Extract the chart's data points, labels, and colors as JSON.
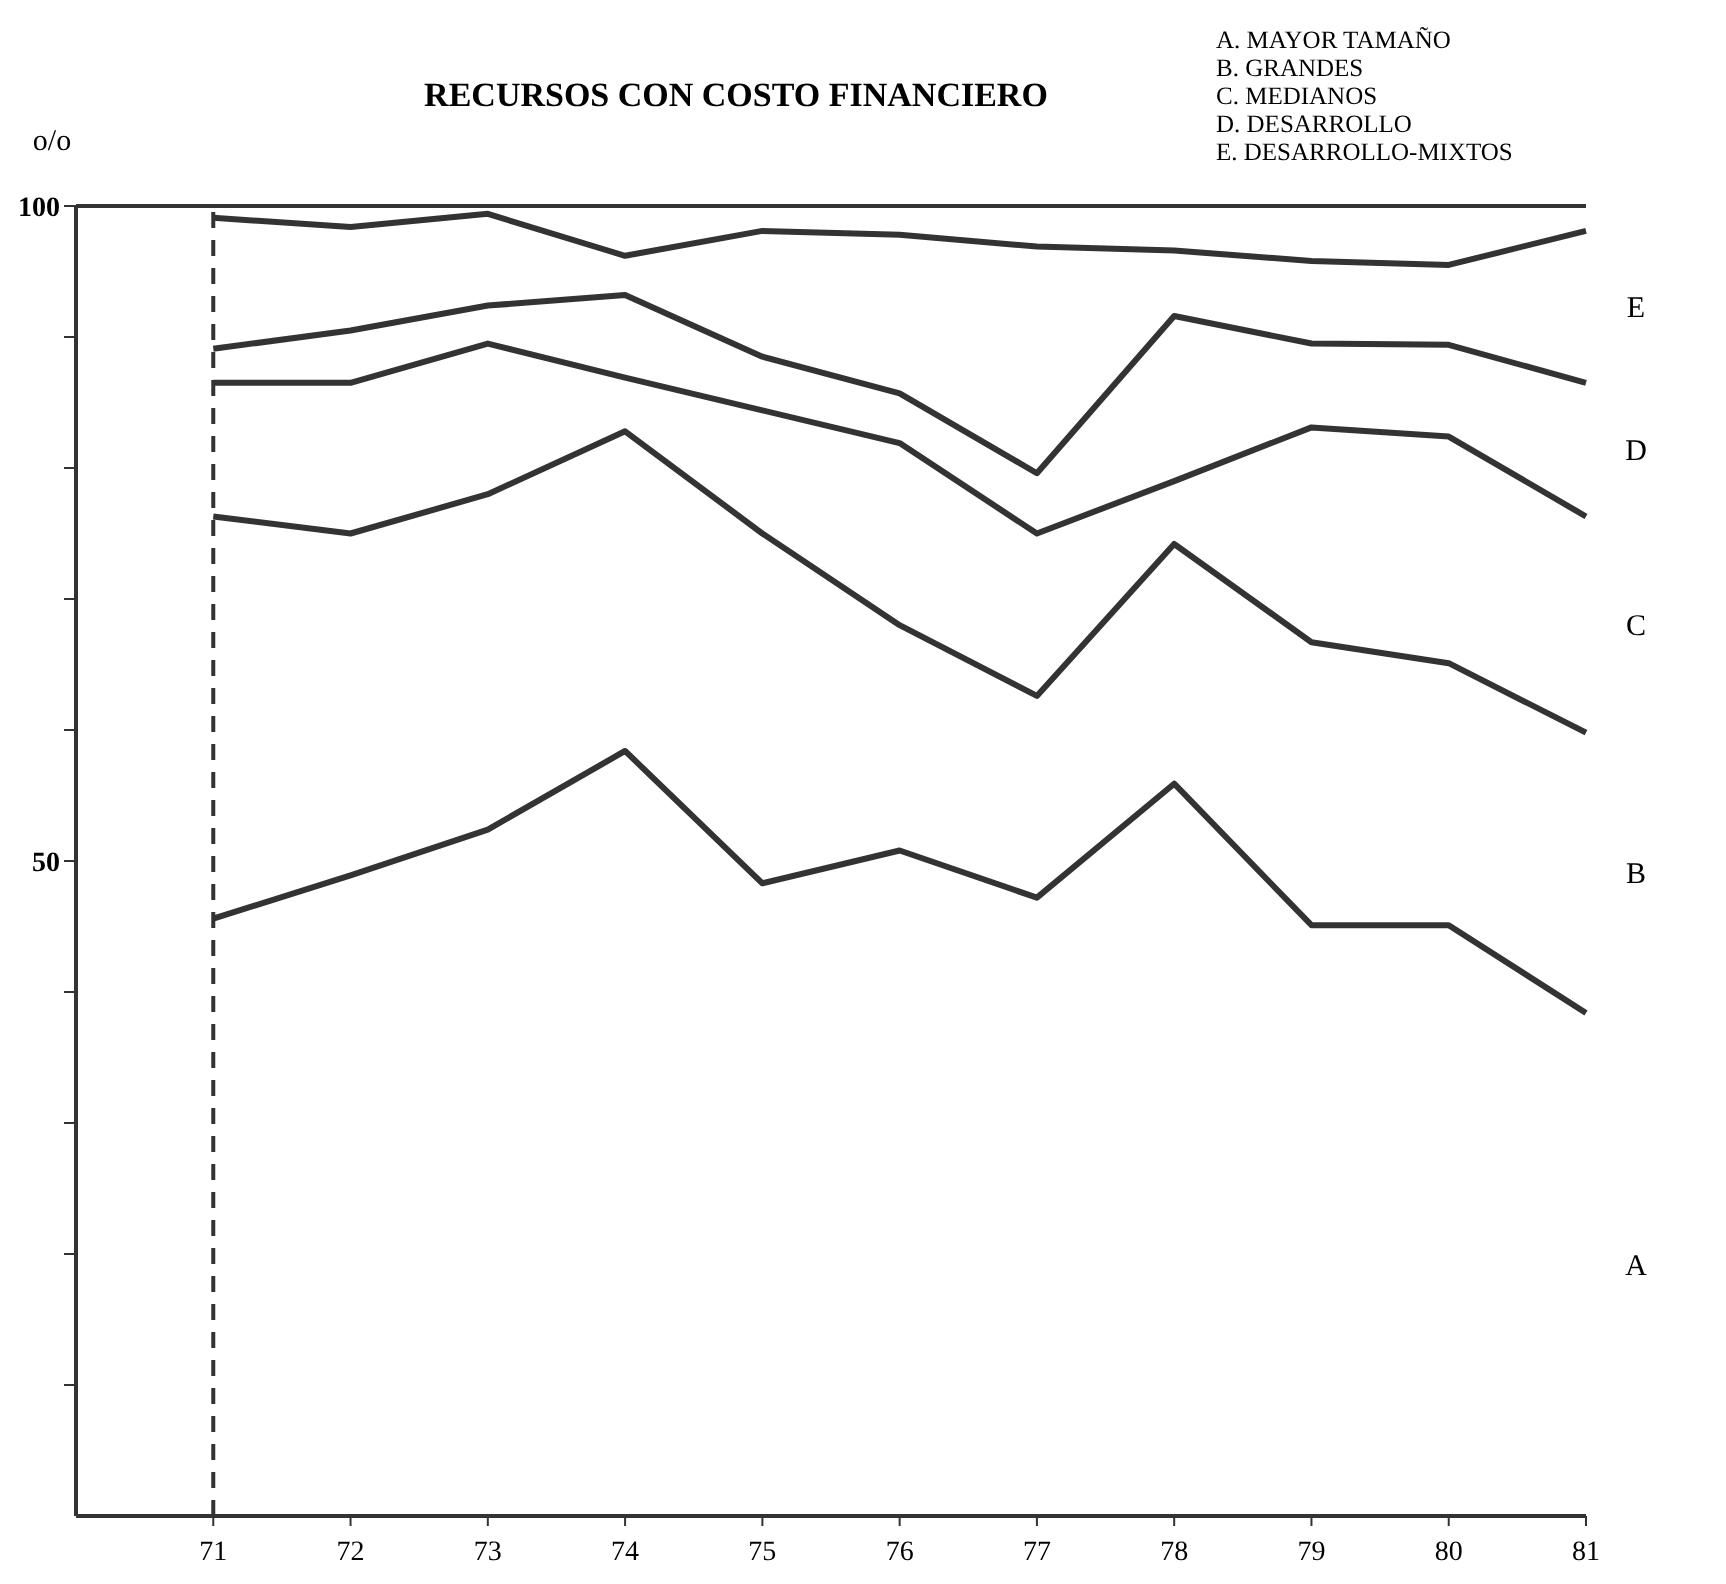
{
  "chart_data": {
    "type": "line",
    "title": "RECURSOS CON COSTO FINANCIERO",
    "ylabel": "o/o",
    "x": [
      71,
      72,
      73,
      74,
      75,
      76,
      77,
      78,
      79,
      80,
      81
    ],
    "xlim": [
      70,
      81
    ],
    "xticks": [
      71,
      72,
      73,
      74,
      75,
      76,
      77,
      78,
      79,
      80,
      81
    ],
    "ylim": [
      0,
      100
    ],
    "yticks": [
      {
        "value": 10,
        "label": null
      },
      {
        "value": 20,
        "label": null
      },
      {
        "value": 30,
        "label": null
      },
      {
        "value": 40,
        "label": null
      },
      50,
      {
        "value": 60,
        "label": null
      },
      {
        "value": 70,
        "label": null
      },
      {
        "value": 80,
        "label": null
      },
      {
        "value": 90,
        "label": null
      },
      100
    ],
    "series": [
      {
        "color": "#333333",
        "values": [
          99.1,
          98.4,
          99.4,
          96.2,
          98.1,
          97.8,
          96.9,
          96.6,
          95.8,
          95.5,
          98.1
        ]
      },
      {
        "color": "#333333",
        "values": [
          89.1,
          90.5,
          92.4,
          93.2,
          88.5,
          85.7,
          79.6,
          91.6,
          89.5,
          89.4,
          86.5
        ]
      },
      {
        "color": "#333333",
        "values": [
          86.5,
          86.5,
          89.5,
          86.9,
          84.4,
          81.9,
          75.0,
          79.0,
          83.1,
          82.4,
          76.3
        ]
      },
      {
        "color": "#333333",
        "values": [
          76.3,
          75.0,
          78.0,
          82.8,
          75.0,
          68.0,
          62.6,
          74.2,
          66.7,
          65.1,
          59.8
        ]
      },
      {
        "color": "#333333",
        "values": [
          45.6,
          48.9,
          52.4,
          58.4,
          48.3,
          50.8,
          47.2,
          55.9,
          45.1,
          45.1,
          38.4
        ]
      }
    ],
    "ref_lines": [
      {
        "axis": "x",
        "value": 71,
        "line_style": "dashed",
        "color": "#333333"
      },
      {
        "axis": "y",
        "value": 100,
        "line_style": "solid",
        "color": "#333333"
      }
    ],
    "annotations": [
      "A. MAYOR TAMAÑO",
      "B. GRANDES",
      "C. MEDIANOS",
      "D. DESARROLLO",
      "E. DESARROLLO-MIXTOS",
      "E",
      "D",
      "C",
      "B",
      "A"
    ],
    "grid": false,
    "marker": "none",
    "line_style": "solid"
  }
}
